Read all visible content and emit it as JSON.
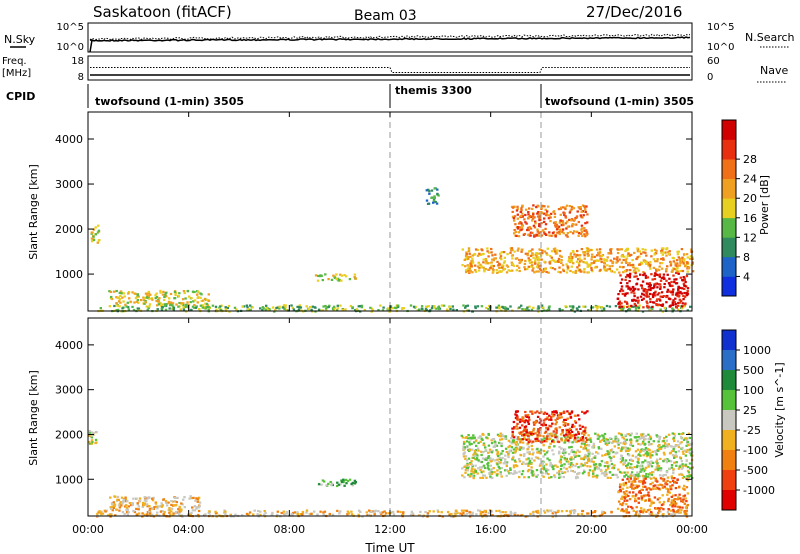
{
  "header": {
    "station": "Saskatoon (fitACF)",
    "beam": "Beam 03",
    "date": "27/Dec/2016"
  },
  "summary_panels": {
    "nsky": {
      "label": "N.Sky",
      "ticks_left": [
        "10^5",
        "10^0"
      ],
      "right_label": "N.Search",
      "ticks_right": [
        "10^5",
        "10^0"
      ]
    },
    "freq": {
      "label_line1": "Freq.",
      "label_line2": "[MHz]",
      "ticks_left": [
        "18",
        "8"
      ],
      "right_label": "Nave",
      "ticks_right": [
        "60",
        "0"
      ]
    },
    "cpid": {
      "label": "CPID",
      "segments": [
        {
          "text": "twofsound (1-min) 3505",
          "start_hour": 0
        },
        {
          "text": "themis 3300",
          "start_hour": 12
        },
        {
          "text": "twofsound (1-min) 3505",
          "start_hour": 18
        }
      ]
    }
  },
  "chart_data": [
    {
      "type": "heatmap",
      "name": "power-panel",
      "ylabel": "Slant Range [km]",
      "ylim": [
        180,
        4600
      ],
      "y_ticks": [
        1000,
        2000,
        3000,
        4000
      ],
      "xlim_hours": [
        0,
        24
      ],
      "colorbar": {
        "label": "Power [dB]",
        "ticks": [
          "4",
          "8",
          "12",
          "16",
          "20",
          "24",
          "28"
        ],
        "colors": [
          "#1030e0",
          "#1e63c8",
          "#2f8a5e",
          "#58b845",
          "#e8d020",
          "#f0a020",
          "#f07018",
          "#e83010",
          "#d00000"
        ]
      },
      "regions": [
        {
          "t0": 0.1,
          "t1": 0.4,
          "r0": 1700,
          "r1": 2100,
          "level": 4
        },
        {
          "t0": 0.8,
          "t1": 4.8,
          "r0": 330,
          "r1": 650,
          "level": 4
        },
        {
          "t0": 0.3,
          "t1": 23.9,
          "r0": 190,
          "r1": 330,
          "level": 3
        },
        {
          "t0": 9.0,
          "t1": 10.6,
          "r0": 860,
          "r1": 1020,
          "level": 4
        },
        {
          "t0": 13.4,
          "t1": 13.9,
          "r0": 2580,
          "r1": 2950,
          "level": 2
        },
        {
          "t0": 14.8,
          "t1": 24.0,
          "r0": 1050,
          "r1": 1600,
          "level": 5
        },
        {
          "t0": 16.8,
          "t1": 19.8,
          "r0": 1850,
          "r1": 2550,
          "level": 6
        },
        {
          "t0": 21.0,
          "t1": 23.8,
          "r0": 280,
          "r1": 1050,
          "level": 8
        }
      ]
    },
    {
      "type": "heatmap",
      "name": "velocity-panel",
      "xlabel": "Time UT",
      "ylabel": "Slant Range [km]",
      "ylim": [
        180,
        4600
      ],
      "y_ticks": [
        1000,
        2000,
        3000,
        4000
      ],
      "xlim_hours": [
        0,
        24
      ],
      "x_ticks": [
        "00:00",
        "04:00",
        "08:00",
        "12:00",
        "16:00",
        "20:00",
        "00:00"
      ],
      "colorbar": {
        "label": "Velocity [m s^-1]",
        "ticks": [
          "1000",
          "500",
          "100",
          "25",
          "-25",
          "-100",
          "-500",
          "-1000"
        ],
        "colors": [
          "#1030d0",
          "#2a6ec8",
          "#1f8a3a",
          "#56c23a",
          "#c8c8c0",
          "#f0b020",
          "#f08010",
          "#f04010",
          "#e00000"
        ]
      },
      "regions": [
        {
          "t0": 0.0,
          "t1": 0.3,
          "r0": 1800,
          "r1": 2100,
          "level": 4
        },
        {
          "t0": 0.8,
          "t1": 4.5,
          "r0": 330,
          "r1": 650,
          "level": 5
        },
        {
          "t0": 0.3,
          "t1": 23.9,
          "r0": 190,
          "r1": 330,
          "level": 5
        },
        {
          "t0": 9.0,
          "t1": 10.6,
          "r0": 860,
          "r1": 1020,
          "level": 3
        },
        {
          "t0": 14.8,
          "t1": 24.0,
          "r0": 1050,
          "r1": 2050,
          "level": 4
        },
        {
          "t0": 16.8,
          "t1": 19.8,
          "r0": 1850,
          "r1": 2550,
          "level": 7
        },
        {
          "t0": 21.0,
          "t1": 23.8,
          "r0": 280,
          "r1": 1050,
          "level": 6
        }
      ]
    }
  ]
}
